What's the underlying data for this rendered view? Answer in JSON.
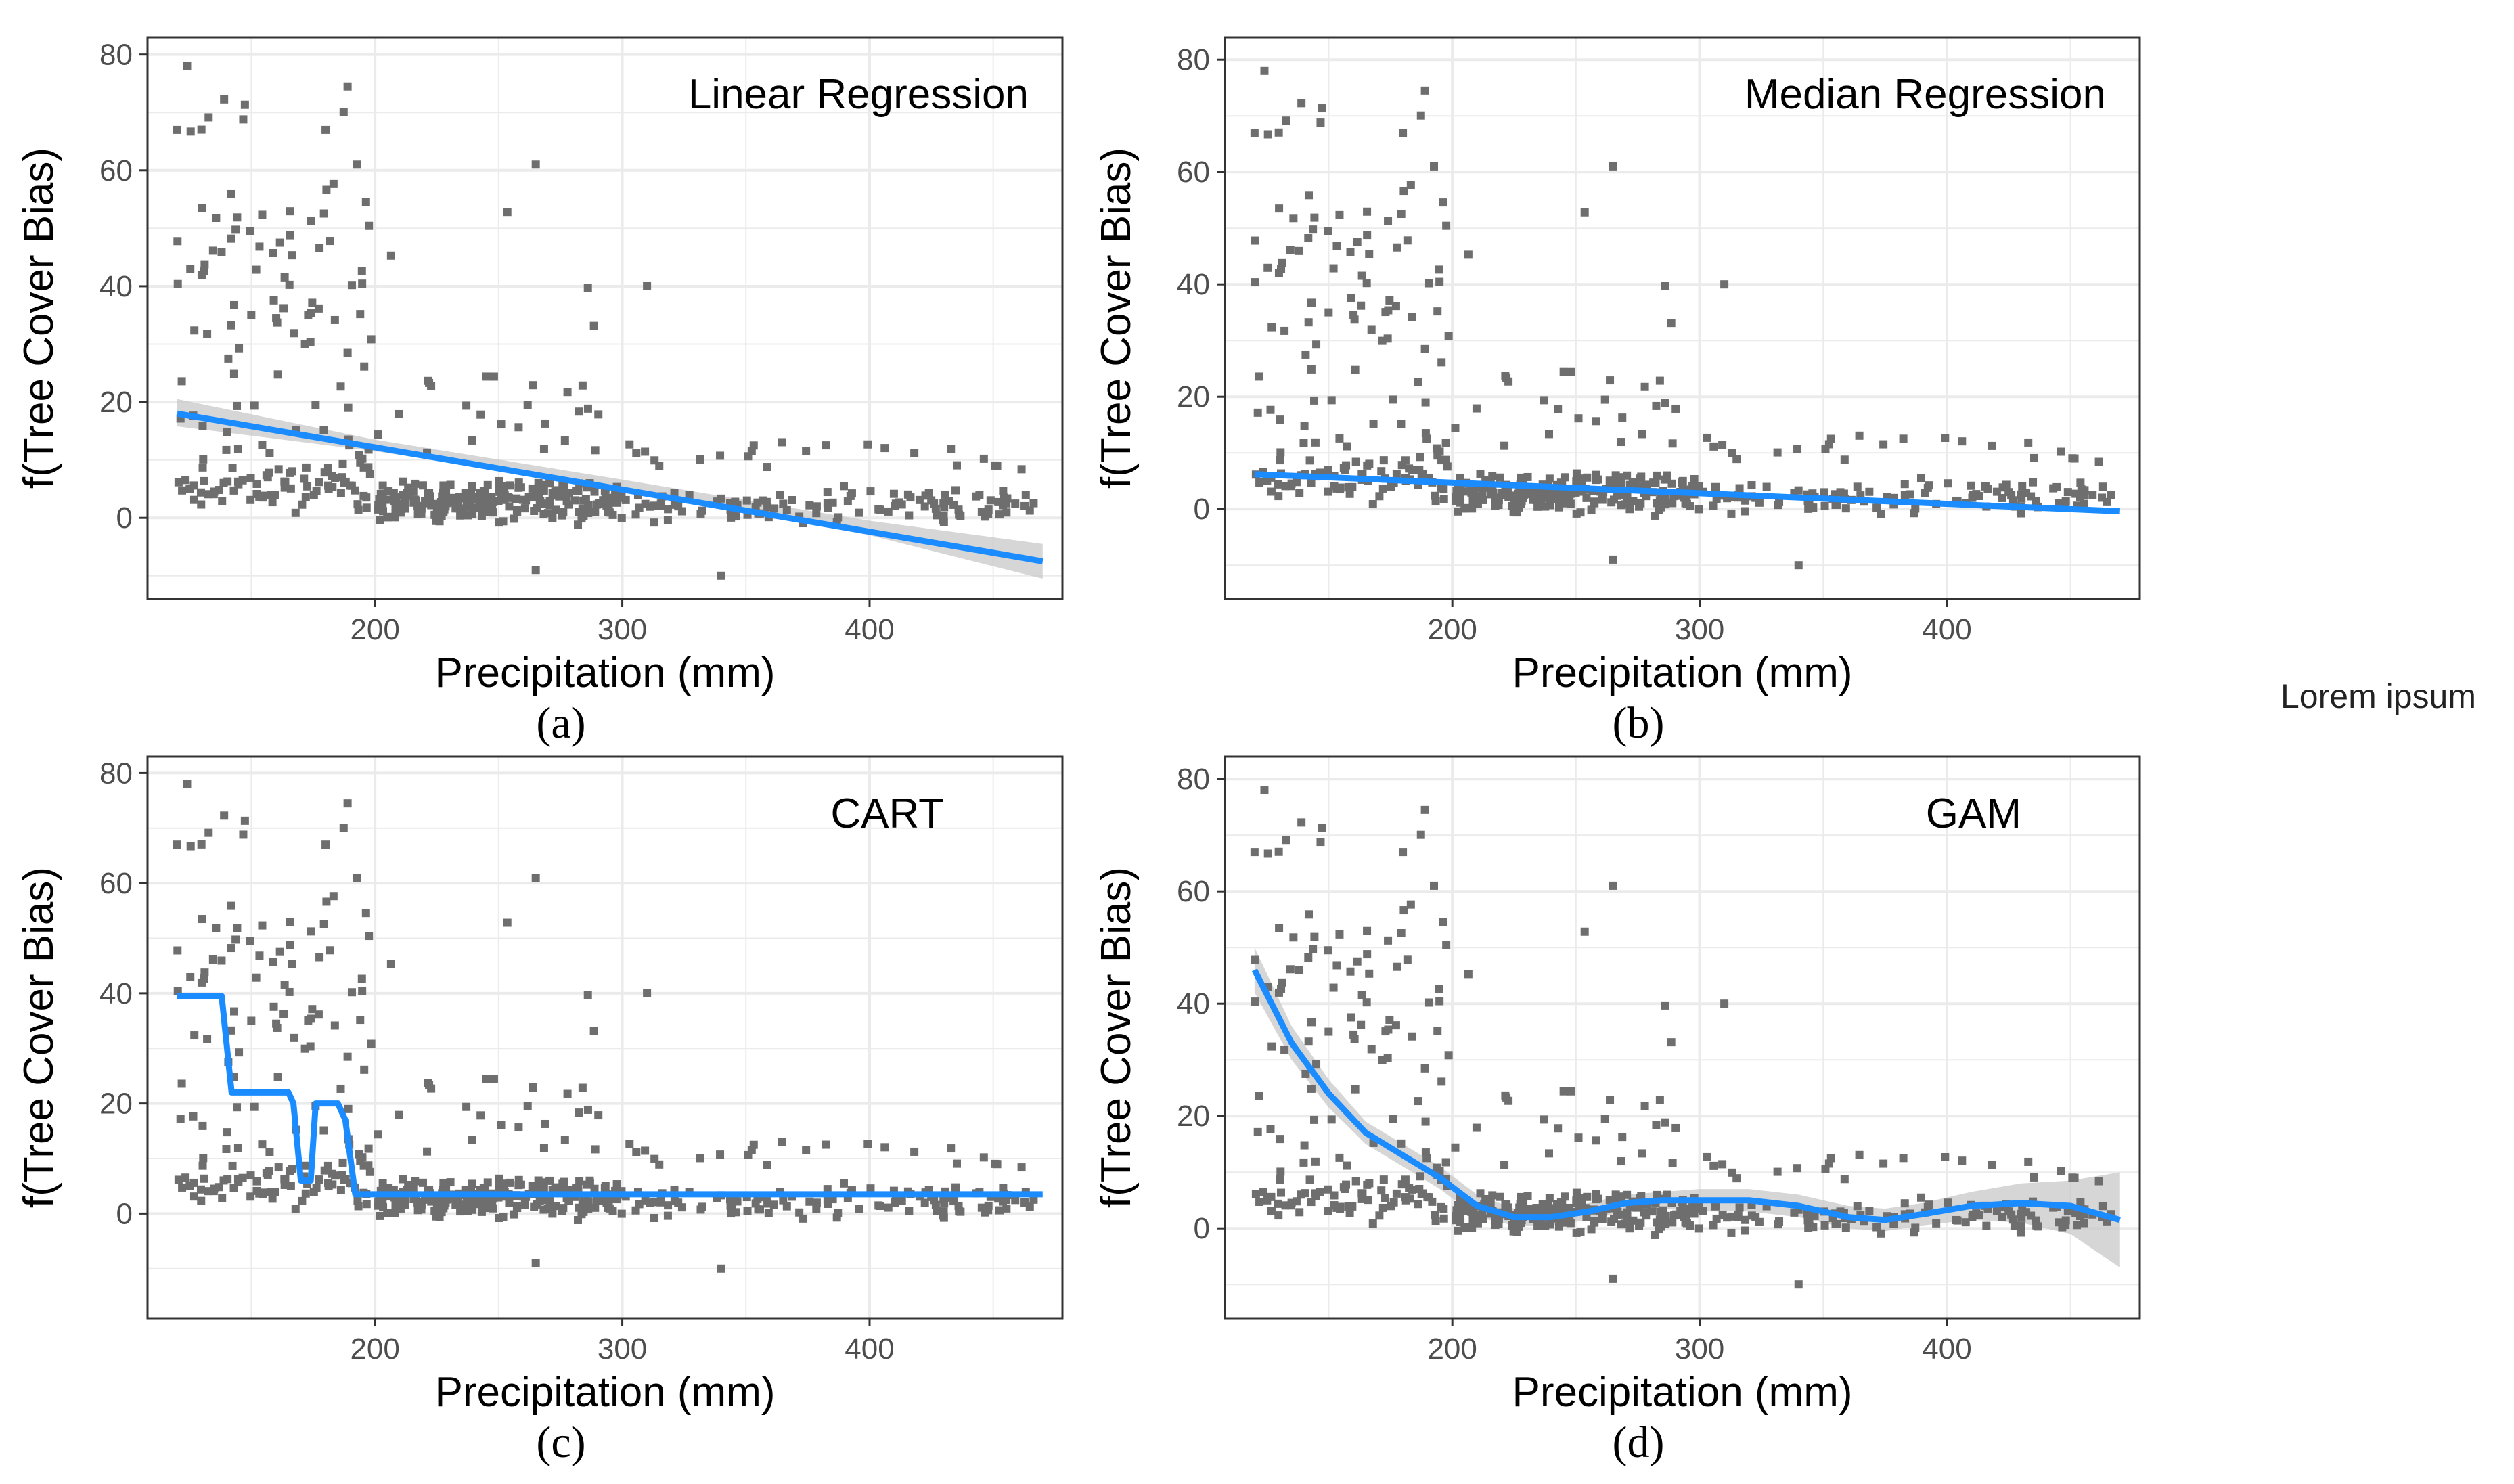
{
  "side_note": "Lorem ipsum",
  "colors": {
    "fit": "#1a8cff",
    "points": "#6e6e6e",
    "band": "#c8c8c8",
    "grid": "#ebebeb",
    "border": "#333333"
  },
  "chart_data": [
    {
      "type": "scatter",
      "title": "Linear Regression",
      "caption": "(a)",
      "xlabel": "Precipitation (mm)",
      "ylabel": "f(Tree Cover Bias)",
      "xlim": [
        108,
        478
      ],
      "ylim": [
        -14,
        83
      ],
      "xticks": [
        200,
        300,
        400
      ],
      "yticks": [
        0,
        20,
        40,
        60,
        80
      ],
      "fit": {
        "x": [
          120,
          470
        ],
        "y": [
          18,
          -7.5
        ]
      },
      "band": {
        "x": [
          120,
          200,
          300,
          400,
          470
        ],
        "upper": [
          20.5,
          13.5,
          6.6,
          -0.5,
          -4.5
        ],
        "lower": [
          15.8,
          11.5,
          5.0,
          -3.0,
          -10.5
        ]
      }
    },
    {
      "type": "scatter",
      "title": "Median Regression",
      "caption": "(b)",
      "xlabel": "Precipitation (mm)",
      "ylabel": "f(Tree Cover Bias)",
      "xlim": [
        108,
        478
      ],
      "ylim": [
        -16,
        84
      ],
      "xticks": [
        200,
        300,
        400
      ],
      "yticks": [
        0,
        20,
        40,
        60,
        80
      ],
      "fit": {
        "x": [
          120,
          470
        ],
        "y": [
          6.2,
          -0.4
        ]
      }
    },
    {
      "type": "scatter",
      "title": "CART",
      "caption": "(c)",
      "xlabel": "Precipitation (mm)",
      "ylabel": "f(Tree Cover Bias)",
      "xlim": [
        108,
        478
      ],
      "ylim": [
        -19,
        83
      ],
      "xticks": [
        200,
        300,
        400
      ],
      "yticks": [
        0,
        20,
        40,
        60,
        80
      ],
      "fit": {
        "x": [
          120,
          138,
          142,
          165,
          167,
          170,
          174,
          176,
          185,
          188,
          192,
          470
        ],
        "y": [
          39.5,
          39.5,
          22,
          22,
          20,
          6,
          6,
          20,
          20,
          17,
          3.5,
          3.5
        ]
      }
    },
    {
      "type": "scatter",
      "title": "GAM",
      "caption": "(d)",
      "xlabel": "Precipitation (mm)",
      "ylabel": "f(Tree Cover Bias)",
      "xlim": [
        108,
        478
      ],
      "ylim": [
        -16,
        84
      ],
      "xticks": [
        200,
        300,
        400
      ],
      "yticks": [
        0,
        20,
        40,
        60,
        80
      ],
      "fit": {
        "x": [
          120,
          135,
          150,
          165,
          180,
          195,
          210,
          225,
          240,
          255,
          270,
          285,
          300,
          320,
          340,
          360,
          375,
          390,
          410,
          430,
          450,
          470
        ],
        "y": [
          46,
          33,
          24,
          17,
          13,
          9,
          4,
          2,
          2,
          3,
          4.5,
          5,
          5,
          5,
          4,
          2,
          1.5,
          2.5,
          4,
          4.5,
          4,
          1.5
        ]
      },
      "band": {
        "x": [
          120,
          135,
          150,
          165,
          180,
          195,
          210,
          225,
          240,
          255,
          270,
          285,
          300,
          320,
          340,
          360,
          375,
          390,
          410,
          430,
          450,
          470
        ],
        "upper": [
          50,
          36,
          26.5,
          19,
          15,
          11,
          6,
          3.5,
          3.5,
          4.5,
          6,
          6.5,
          7,
          7,
          6,
          4,
          3.5,
          4.5,
          6.5,
          8,
          8.5,
          10
        ],
        "lower": [
          42,
          30,
          21.5,
          15,
          11,
          7,
          2,
          0.5,
          0.5,
          1.5,
          3,
          3.5,
          3,
          3,
          2,
          0,
          -0.5,
          0.5,
          1.5,
          1,
          -1,
          -7
        ]
      }
    }
  ]
}
